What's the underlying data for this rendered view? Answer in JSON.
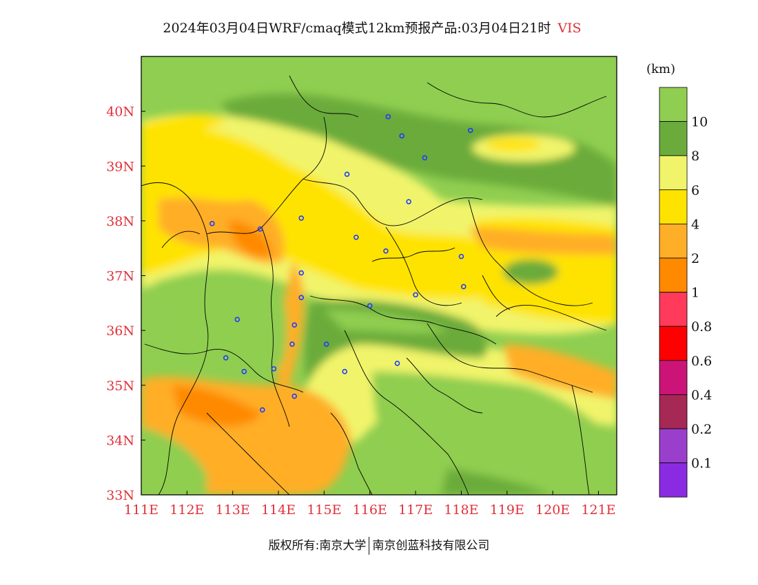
{
  "title": {
    "text": "2024年03月04日WRF/cmaq模式12km预报产品:03月04日21时",
    "variable": "VIS"
  },
  "units": "(km)",
  "chart_data": {
    "type": "heatmap",
    "xlim": [
      111,
      121.4
    ],
    "ylim": [
      33,
      41
    ],
    "x_ticks": [
      "111E",
      "112E",
      "113E",
      "114E",
      "115E",
      "116E",
      "117E",
      "118E",
      "119E",
      "120E",
      "121E"
    ],
    "y_ticks": [
      "33N",
      "34N",
      "35N",
      "36N",
      "37N",
      "38N",
      "39N",
      "40N"
    ],
    "legend_placement": "right",
    "colorbar": {
      "labels": [
        "10",
        "8",
        "6",
        "4",
        "2",
        "1",
        "0.8",
        "0.6",
        "0.4",
        "0.2",
        "0.1"
      ],
      "colors": [
        "#8fce50",
        "#6aab3b",
        "#f1f46a",
        "#ffe300",
        "#ffae27",
        "#ff8a00",
        "#ff3a5a",
        "#ff0000",
        "#cc1478",
        "#a52855",
        "#9a3fcc",
        "#8a2be2"
      ]
    },
    "stations": [
      {
        "lon": 116.4,
        "lat": 39.9
      },
      {
        "lon": 116.7,
        "lat": 39.55
      },
      {
        "lon": 118.2,
        "lat": 39.65
      },
      {
        "lon": 117.2,
        "lat": 39.15
      },
      {
        "lon": 115.5,
        "lat": 38.85
      },
      {
        "lon": 116.85,
        "lat": 38.35
      },
      {
        "lon": 112.55,
        "lat": 37.95
      },
      {
        "lon": 113.6,
        "lat": 37.85
      },
      {
        "lon": 114.5,
        "lat": 38.05
      },
      {
        "lon": 115.7,
        "lat": 37.7
      },
      {
        "lon": 116.35,
        "lat": 37.45
      },
      {
        "lon": 118.0,
        "lat": 37.35
      },
      {
        "lon": 114.5,
        "lat": 37.05
      },
      {
        "lon": 117.0,
        "lat": 36.65
      },
      {
        "lon": 118.05,
        "lat": 36.8
      },
      {
        "lon": 114.5,
        "lat": 36.6
      },
      {
        "lon": 116.0,
        "lat": 36.45
      },
      {
        "lon": 113.1,
        "lat": 36.2
      },
      {
        "lon": 114.35,
        "lat": 36.1
      },
      {
        "lon": 115.05,
        "lat": 35.75
      },
      {
        "lon": 114.3,
        "lat": 35.75
      },
      {
        "lon": 112.85,
        "lat": 35.5
      },
      {
        "lon": 116.6,
        "lat": 35.4
      },
      {
        "lon": 113.9,
        "lat": 35.3
      },
      {
        "lon": 113.25,
        "lat": 35.25
      },
      {
        "lon": 115.45,
        "lat": 35.25
      },
      {
        "lon": 114.35,
        "lat": 34.8
      },
      {
        "lon": 113.65,
        "lat": 34.55
      }
    ]
  },
  "footer": {
    "left": "版权所有:南京大学",
    "right": "南京创蓝科技有限公司"
  }
}
